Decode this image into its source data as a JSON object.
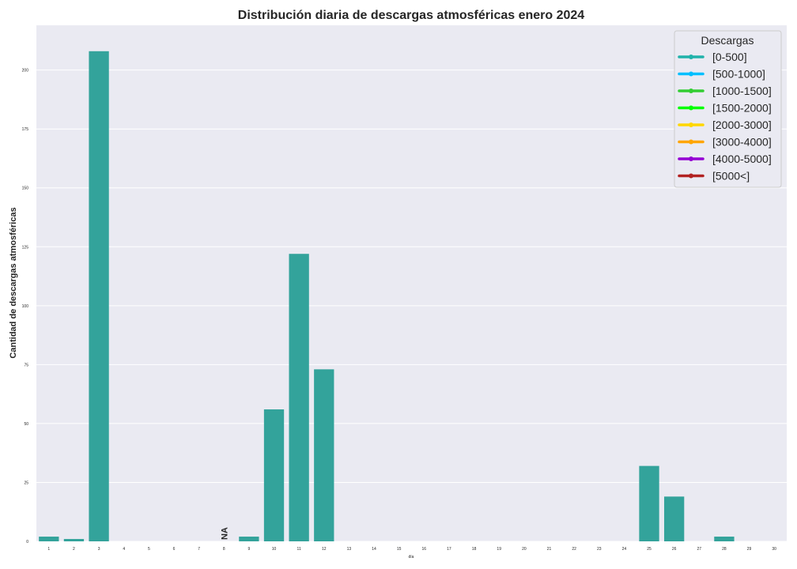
{
  "chart_data": {
    "type": "bar",
    "title": "Distribución diaria de descargas atmosféricas enero 2024",
    "xlabel": "día",
    "ylabel": "Cantidad de descargas atmosféricas",
    "categories": [
      "1",
      "2",
      "3",
      "4",
      "5",
      "6",
      "7",
      "8",
      "9",
      "10",
      "11",
      "12",
      "13",
      "14",
      "15",
      "16",
      "17",
      "18",
      "19",
      "20",
      "21",
      "22",
      "23",
      "24",
      "25",
      "26",
      "27",
      "28",
      "29",
      "30"
    ],
    "values": [
      2,
      1,
      208,
      0,
      0,
      0,
      0,
      null,
      2,
      56,
      122,
      73,
      0,
      0,
      0,
      0,
      0,
      0,
      0,
      0,
      0,
      0,
      0,
      0,
      32,
      19,
      0,
      2,
      0,
      0
    ],
    "missing_label": "NA",
    "ylim": [
      0,
      219
    ],
    "yticks": [
      0,
      25,
      50,
      75,
      100,
      125,
      150,
      175,
      200
    ],
    "grid": true,
    "bar_color": "#33a39b",
    "background_color": "#eaeaf2",
    "legend": {
      "title": "Descargas",
      "placement": "top-right",
      "entries": [
        {
          "label": "[0-500]",
          "color": "#20b2aa"
        },
        {
          "label": "[500-1000]",
          "color": "#00bfff"
        },
        {
          "label": "[1000-1500]",
          "color": "#32cd32"
        },
        {
          "label": "[1500-2000]",
          "color": "#00ff00"
        },
        {
          "label": "[2000-3000]",
          "color": "#ffd700"
        },
        {
          "label": "[3000-4000]",
          "color": "#ffa500"
        },
        {
          "label": "[4000-5000]",
          "color": "#9400d3"
        },
        {
          "label": "[5000<]",
          "color": "#b22222"
        }
      ]
    }
  }
}
